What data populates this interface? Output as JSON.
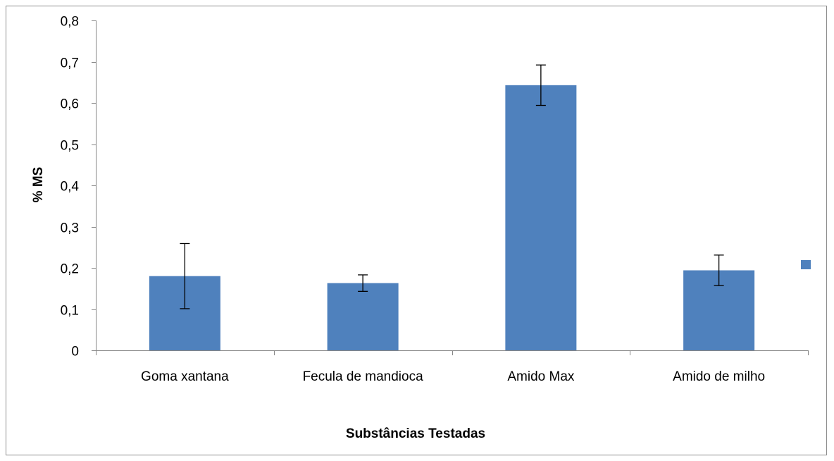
{
  "chart_data": {
    "type": "bar",
    "title": "",
    "xlabel": "Substâncias Testadas",
    "ylabel": "% MS",
    "categories": [
      "Goma xantana",
      "Fecula de mandioca",
      "Amido Max",
      "Amido de milho"
    ],
    "series": [
      {
        "values": [
          0.18,
          0.163,
          0.643,
          0.194
        ],
        "error": [
          0.079,
          0.02,
          0.049,
          0.037
        ],
        "color": "#4f81bd"
      }
    ],
    "ylim": [
      0,
      0.8
    ],
    "yticks": [
      "0",
      "0,1",
      "0,2",
      "0,3",
      "0,4",
      "0,5",
      "0,6",
      "0,7",
      "0,8"
    ],
    "ytick_values": [
      0,
      0.1,
      0.2,
      0.3,
      0.4,
      0.5,
      0.6,
      0.7,
      0.8
    ],
    "grid": false,
    "legend": {
      "placement": "right",
      "entries": [
        {
          "name": "",
          "color": "#4f81bd"
        }
      ]
    }
  }
}
